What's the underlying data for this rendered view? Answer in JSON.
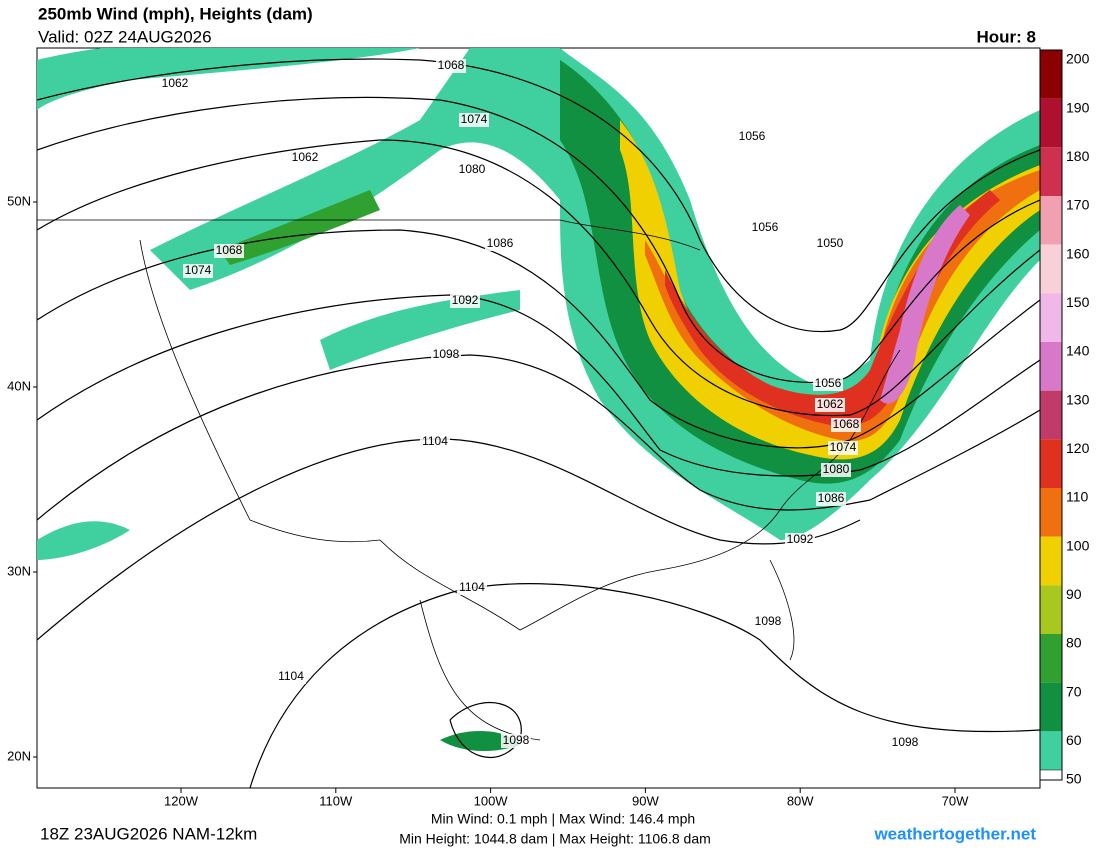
{
  "header": {
    "title": "250mb Wind (mph), Heights (dam)",
    "valid": "Valid: 02Z 24AUG2026",
    "hour": "Hour: 8"
  },
  "colorbar": {
    "labels": [
      "200",
      "190",
      "180",
      "170",
      "160",
      "150",
      "140",
      "130",
      "120",
      "110",
      "100",
      "90",
      "80",
      "70",
      "60",
      "50"
    ],
    "colors": [
      "#8b0000",
      "#b01030",
      "#d03050",
      "#f0a0b0",
      "#f8d0d8",
      "#f0b8e8",
      "#d878c8",
      "#c03a6a",
      "#e03020",
      "#f07010",
      "#f0d000",
      "#a8c820",
      "#30a030",
      "#109040",
      "#40d0a0",
      "#ffffff"
    ]
  },
  "latitude_labels": [
    "50N",
    "40N",
    "30N",
    "20N"
  ],
  "longitude_labels": [
    "120W",
    "110W",
    "100W",
    "90W",
    "80W",
    "70W"
  ],
  "contour_labels": [
    "1062",
    "1068",
    "1074",
    "1062",
    "1080",
    "1068",
    "1074",
    "1086",
    "1092",
    "1098",
    "1104",
    "1104",
    "1104",
    "1098",
    "1098",
    "1098",
    "1092",
    "1086",
    "1080",
    "1074",
    "1068",
    "1062",
    "1056",
    "1056",
    "1050",
    "1056"
  ],
  "footer": {
    "model_run": "18Z 23AUG2026 NAM-12km",
    "wind_range": "Min Wind:   0.1 mph | Max Wind: 146.4 mph",
    "height_range": "Min Height: 1044.8 dam | Max Height: 1106.8 dam",
    "site": "weathertogether.net"
  }
}
